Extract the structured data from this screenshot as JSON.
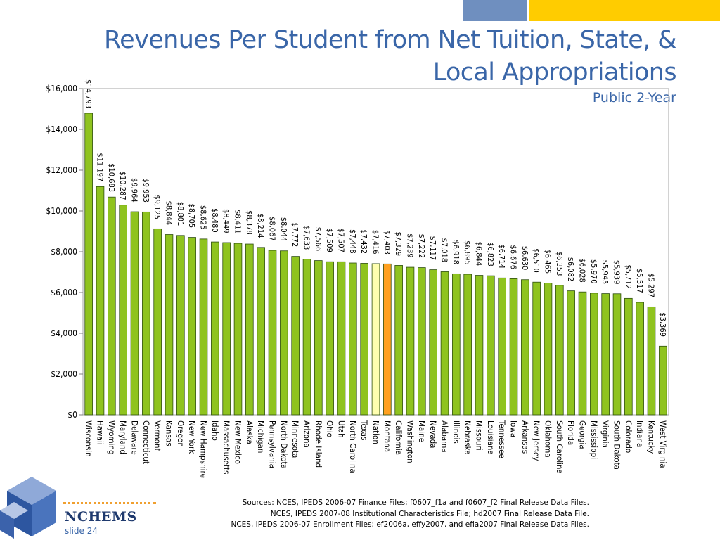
{
  "header": {
    "title": "Revenues Per Student from Net Tuition, State, & Local Appropriations",
    "subtitle": "Public 2-Year"
  },
  "footer": {
    "logo_text": "NCHEMS",
    "slide": "slide 24",
    "sources": [
      "Sources:  NCES, IPEDS 2006-07 Finance Files; f0607_f1a and f0607_f2 Final Release Data Files.",
      "NCES, IPEDS 2007-08 Institutional Characteristics File; hd2007 Final Release Data File.",
      "NCES, IPEDS 2006-07 Enrollment Files; ef2006a, effy2007, and efia2007 Final Release Data Files."
    ]
  },
  "colors": {
    "bar": "#8fc31f",
    "nation_bar": "#ffffb0",
    "highlight_bar": "#ffa020",
    "title": "#3a66a8"
  },
  "chart_data": {
    "type": "bar",
    "ylim": [
      0,
      16000
    ],
    "yticks": [
      0,
      2000,
      4000,
      6000,
      8000,
      10000,
      12000,
      14000,
      16000
    ],
    "ytick_labels": [
      "$0",
      "$2,000",
      "$4,000",
      "$6,000",
      "$8,000",
      "$10,000",
      "$12,000",
      "$14,000",
      "$16,000"
    ],
    "categories": [
      "Wisconsin",
      "Hawaii",
      "Wyoming",
      "Maryland",
      "Delaware",
      "Connecticut",
      "Vermont",
      "Kansas",
      "Oregon",
      "New York",
      "New Hampshire",
      "Idaho",
      "Massachusetts",
      "New Mexico",
      "Alaska",
      "Michigan",
      "Pennsylvania",
      "North Dakota",
      "Minnesota",
      "Arizona",
      "Rhode Island",
      "Ohio",
      "Utah",
      "North Carolina",
      "Texas",
      "Nation",
      "Montana",
      "California",
      "Washington",
      "Maine",
      "Nevada",
      "Alabama",
      "Illinois",
      "Nebraska",
      "Missouri",
      "Louisiana",
      "Tennessee",
      "Iowa",
      "Arkansas",
      "New Jersey",
      "Oklahoma",
      "South Carolina",
      "Florida",
      "Georgia",
      "Mississippi",
      "Virginia",
      "South Dakota",
      "Colorado",
      "Indiana",
      "Kentucky",
      "West Virginia"
    ],
    "values": [
      14793,
      11197,
      10683,
      10287,
      9964,
      9953,
      9125,
      8844,
      8801,
      8705,
      8625,
      8480,
      8449,
      8411,
      8378,
      8214,
      8067,
      8044,
      7772,
      7633,
      7566,
      7509,
      7507,
      7448,
      7432,
      7416,
      7403,
      7329,
      7239,
      7222,
      7117,
      7018,
      6918,
      6895,
      6844,
      6823,
      6714,
      6676,
      6630,
      6510,
      6465,
      6353,
      6082,
      6028,
      5970,
      5945,
      5939,
      5712,
      5517,
      5297,
      3369
    ],
    "value_labels": [
      "$14,793",
      "$11,197",
      "$10,683",
      "$10,287",
      "$9,964",
      "$9,953",
      "$9,125",
      "$8,844",
      "$8,801",
      "$8,705",
      "$8,625",
      "$8,480",
      "$8,449",
      "$8,411",
      "$8,378",
      "$8,214",
      "$8,067",
      "$8,044",
      "$7,772",
      "$7,633",
      "$7,566",
      "$7,509",
      "$7,507",
      "$7,448",
      "$7,432",
      "$7,416",
      "$7,403",
      "$7,329",
      "$7,239",
      "$7,222",
      "$7,117",
      "$7,018",
      "$6,918",
      "$6,895",
      "$6,844",
      "$6,823",
      "$6,714",
      "$6,676",
      "$6,630",
      "$6,510",
      "$6,465",
      "$6,353",
      "$6,082",
      "$6,028",
      "$5,970",
      "$5,945",
      "$5,939",
      "$5,712",
      "$5,517",
      "$5,297",
      "$3,369"
    ],
    "nation_category": "Nation",
    "highlight_category": "Montana",
    "grid": false,
    "legend": "none"
  }
}
